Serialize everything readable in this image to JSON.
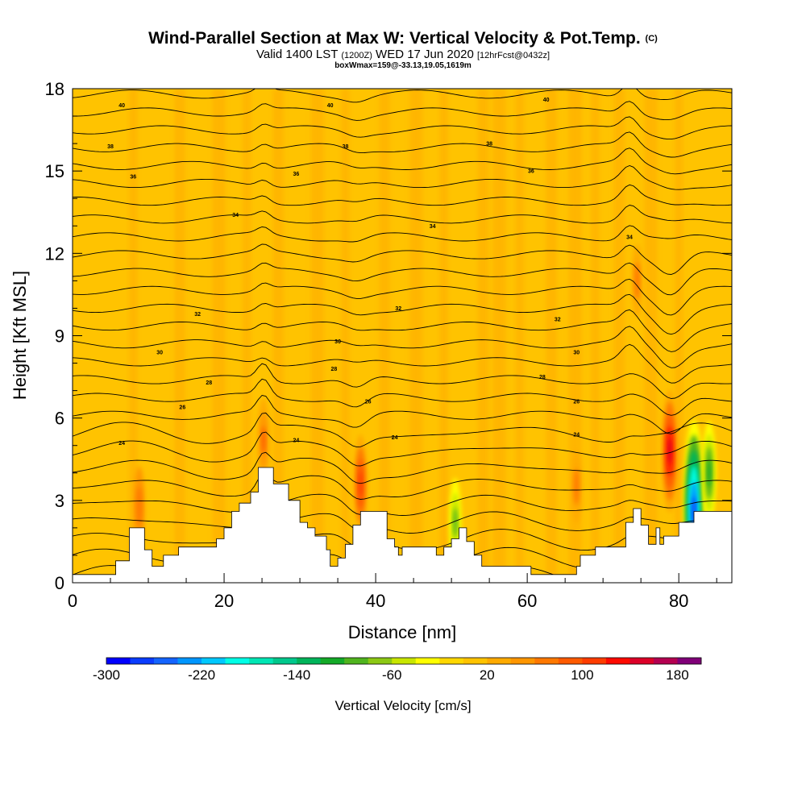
{
  "header": {
    "title": "Wind-Parallel Section at Max W: Vertical Velocity & Pot.Temp.",
    "copyright_mark": "(C)",
    "valid_prefix": "Valid 1400 LST",
    "valid_utc": "(1200Z)",
    "valid_date": "WED 17 Jun 2020",
    "forecast_info": "[12hrFcst@0432z]",
    "box_info": "boxWmax=159@-33.13,19.05,1619m"
  },
  "chart_data": {
    "type": "heatmap",
    "title": "Wind-Parallel Section at Max W: Vertical Velocity & Pot.Temp.",
    "xlabel": "Distance [nm]",
    "ylabel": "Height [Kft MSL]",
    "xlim": [
      0,
      87
    ],
    "ylim": [
      0,
      18
    ],
    "x_ticks": [
      0,
      20,
      40,
      60,
      80
    ],
    "y_ticks": [
      0,
      3,
      6,
      9,
      12,
      15,
      18
    ],
    "field": "Vertical Velocity [cm/s]",
    "background_value": 10,
    "colorbar": {
      "label": "Vertical Velocity [cm/s]",
      "min": -300,
      "max": 200,
      "step": 20,
      "tick_labels": [
        "-300",
        "-220",
        "-140",
        "-60",
        "20",
        "100",
        "180"
      ],
      "colors": [
        "#0000ff",
        "#0a3cff",
        "#1464ff",
        "#0096ff",
        "#00c8ff",
        "#00ffe6",
        "#00e6b4",
        "#00c88c",
        "#00b45a",
        "#14aa28",
        "#50b41e",
        "#8cc814",
        "#c8e600",
        "#ffff00",
        "#ffd700",
        "#ffc300",
        "#ffaa00",
        "#ff9600",
        "#ff7800",
        "#ff5a00",
        "#ff3c00",
        "#ff0a00",
        "#dc0028",
        "#b40050",
        "#800078"
      ]
    },
    "terrain": [
      [
        0,
        0.3
      ],
      [
        5.7,
        0.3
      ],
      [
        5.7,
        0.8
      ],
      [
        7.5,
        0.8
      ],
      [
        7.5,
        2.0
      ],
      [
        9.5,
        2.0
      ],
      [
        9.5,
        1.2
      ],
      [
        10.5,
        1.2
      ],
      [
        10.5,
        0.6
      ],
      [
        12,
        0.6
      ],
      [
        12,
        1.0
      ],
      [
        14,
        1.0
      ],
      [
        14,
        1.3
      ],
      [
        19,
        1.3
      ],
      [
        19,
        1.6
      ],
      [
        20,
        1.6
      ],
      [
        20,
        2.0
      ],
      [
        21,
        2.0
      ],
      [
        21,
        2.6
      ],
      [
        22,
        2.6
      ],
      [
        22,
        2.9
      ],
      [
        23.5,
        2.9
      ],
      [
        23.5,
        3.3
      ],
      [
        24.5,
        3.3
      ],
      [
        24.5,
        4.2
      ],
      [
        26.5,
        4.2
      ],
      [
        26.5,
        3.6
      ],
      [
        28.5,
        3.6
      ],
      [
        28.5,
        3.0
      ],
      [
        30,
        3.0
      ],
      [
        30,
        2.2
      ],
      [
        31,
        2.2
      ],
      [
        31,
        2.0
      ],
      [
        32,
        2.0
      ],
      [
        32,
        1.7
      ],
      [
        33.5,
        1.7
      ],
      [
        33.5,
        1.2
      ],
      [
        34,
        1.2
      ],
      [
        34,
        0.6
      ],
      [
        35,
        0.6
      ],
      [
        35,
        0.9
      ],
      [
        36,
        0.9
      ],
      [
        36,
        1.4
      ],
      [
        37,
        1.4
      ],
      [
        37,
        2.1
      ],
      [
        38,
        2.1
      ],
      [
        38,
        2.6
      ],
      [
        41.5,
        2.6
      ],
      [
        41.5,
        1.6
      ],
      [
        42.5,
        1.6
      ],
      [
        42.5,
        1.3
      ],
      [
        43,
        1.3
      ],
      [
        43,
        1.0
      ],
      [
        43.5,
        1.0
      ],
      [
        43.5,
        1.3
      ],
      [
        48,
        1.3
      ],
      [
        48,
        1.0
      ],
      [
        49,
        1.0
      ],
      [
        49,
        1.3
      ],
      [
        50,
        1.3
      ],
      [
        50,
        1.6
      ],
      [
        51,
        1.6
      ],
      [
        51,
        2.0
      ],
      [
        52,
        2.0
      ],
      [
        52,
        1.5
      ],
      [
        53,
        1.5
      ],
      [
        53,
        1.0
      ],
      [
        54,
        1.0
      ],
      [
        54,
        0.6
      ],
      [
        60.5,
        0.6
      ],
      [
        60.5,
        0.3
      ],
      [
        66.5,
        0.3
      ],
      [
        66.5,
        0.6
      ],
      [
        67,
        0.6
      ],
      [
        67,
        1.0
      ],
      [
        69,
        1.0
      ],
      [
        69,
        1.3
      ],
      [
        73,
        1.3
      ],
      [
        73,
        2.2
      ],
      [
        74,
        2.2
      ],
      [
        74,
        2.7
      ],
      [
        75,
        2.7
      ],
      [
        75,
        2.1
      ],
      [
        76,
        2.1
      ],
      [
        76,
        1.4
      ],
      [
        77,
        1.4
      ],
      [
        77,
        2.0
      ],
      [
        77.5,
        2.0
      ],
      [
        77.5,
        1.4
      ],
      [
        78,
        1.4
      ],
      [
        78,
        1.7
      ],
      [
        80,
        1.7
      ],
      [
        80,
        2.2
      ],
      [
        82,
        2.2
      ],
      [
        82,
        2.6
      ],
      [
        84,
        2.6
      ],
      [
        84,
        2.6
      ],
      [
        87,
        2.6
      ]
    ],
    "features": [
      {
        "x": 8.8,
        "y": 2.8,
        "value": 70,
        "label": "updraft"
      },
      {
        "x": 25.2,
        "y": 5.2,
        "value": 80,
        "label": "updraft"
      },
      {
        "x": 38.0,
        "y": 3.6,
        "value": 110,
        "label": "updraft"
      },
      {
        "x": 66.5,
        "y": 3.5,
        "value": 60,
        "label": "updraft"
      },
      {
        "x": 74.5,
        "y": 11.0,
        "value": 60,
        "label": "updraft"
      },
      {
        "x": 78.8,
        "y": 4.8,
        "value": 159,
        "label": "max updraft"
      },
      {
        "x": 50.5,
        "y": 2.2,
        "value": -90,
        "label": "downdraft"
      },
      {
        "x": 82.0,
        "y": 2.6,
        "value": -280,
        "label": "downdraft core"
      },
      {
        "x": 84.0,
        "y": 4.0,
        "value": -120,
        "label": "downdraft"
      }
    ],
    "contour_field": "Potential Temperature",
    "contour_labels": [
      {
        "x": 6.5,
        "y": 17.4,
        "text": "40"
      },
      {
        "x": 34,
        "y": 17.4,
        "text": "40"
      },
      {
        "x": 62.5,
        "y": 17.6,
        "text": "40"
      },
      {
        "x": 5,
        "y": 15.9,
        "text": "38"
      },
      {
        "x": 36,
        "y": 15.9,
        "text": "38"
      },
      {
        "x": 55,
        "y": 16.0,
        "text": "38"
      },
      {
        "x": 8,
        "y": 14.8,
        "text": "36"
      },
      {
        "x": 29.5,
        "y": 14.9,
        "text": "36"
      },
      {
        "x": 60.5,
        "y": 15.0,
        "text": "36"
      },
      {
        "x": 21.5,
        "y": 13.4,
        "text": "34"
      },
      {
        "x": 47.5,
        "y": 13.0,
        "text": "34"
      },
      {
        "x": 73.5,
        "y": 12.6,
        "text": "34"
      },
      {
        "x": 16.5,
        "y": 9.8,
        "text": "32"
      },
      {
        "x": 43,
        "y": 10.0,
        "text": "32"
      },
      {
        "x": 64,
        "y": 9.6,
        "text": "32"
      },
      {
        "x": 11.5,
        "y": 8.4,
        "text": "30"
      },
      {
        "x": 35,
        "y": 8.8,
        "text": "30"
      },
      {
        "x": 66.5,
        "y": 8.4,
        "text": "30"
      },
      {
        "x": 18,
        "y": 7.3,
        "text": "28"
      },
      {
        "x": 34.5,
        "y": 7.8,
        "text": "28"
      },
      {
        "x": 62,
        "y": 7.5,
        "text": "28"
      },
      {
        "x": 14.5,
        "y": 6.4,
        "text": "26"
      },
      {
        "x": 39,
        "y": 6.6,
        "text": "26"
      },
      {
        "x": 66.5,
        "y": 6.6,
        "text": "26"
      },
      {
        "x": 6.5,
        "y": 5.1,
        "text": "24"
      },
      {
        "x": 29.5,
        "y": 5.2,
        "text": "24"
      },
      {
        "x": 42.5,
        "y": 5.3,
        "text": "24"
      },
      {
        "x": 66.5,
        "y": 5.4,
        "text": "24"
      }
    ]
  }
}
